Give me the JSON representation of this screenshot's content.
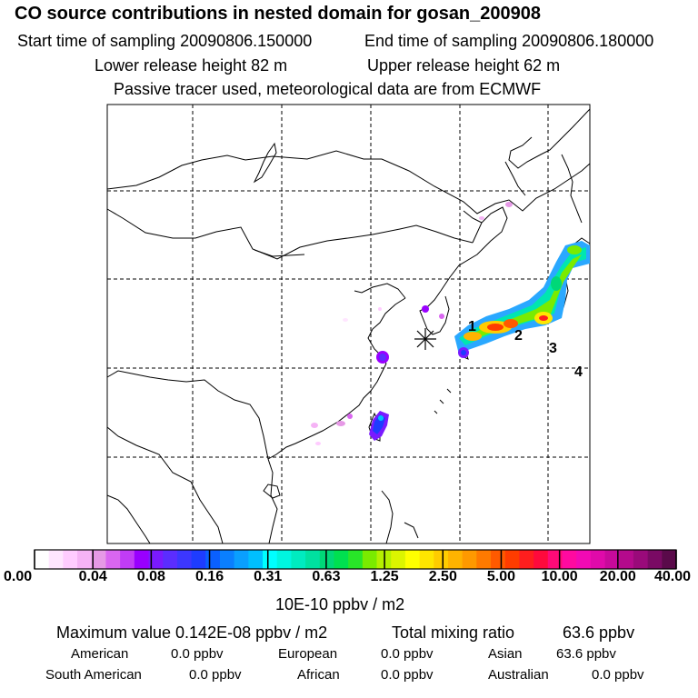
{
  "header": {
    "title": "CO  source contributions in nested domain for gosan_200908",
    "start_label": "Start time of sampling 20090806.150000",
    "end_label": "End time of sampling 20090806.180000",
    "lower_label": "Lower release height   82 m",
    "upper_label": "Upper release height   62 m",
    "note": "Passive tracer used, meteorological data are from ECMWF"
  },
  "map": {
    "receptor_marker": "asterisk",
    "markers": [
      "1",
      "2",
      "3",
      "4"
    ]
  },
  "colorbar": {
    "unit": "10E-10 ppbv / m2",
    "labels": [
      "0.00",
      "0.04",
      "0.08",
      "0.16",
      "0.31",
      "0.63",
      "1.25",
      "2.50",
      "5.00",
      "10.00",
      "20.00",
      "40.00"
    ],
    "colors": [
      "#ffffff",
      "#ffe6ff",
      "#ffccff",
      "#f5b3f5",
      "#e699e6",
      "#d966f0",
      "#c13cf5",
      "#9900ff",
      "#7a1aff",
      "#5b2dff",
      "#3c37ff",
      "#1e3cff",
      "#0a60ff",
      "#0a7fff",
      "#0a9fff",
      "#00bfff",
      "#00ffff",
      "#00f5e0",
      "#00ebc0",
      "#00e1a0",
      "#00d878",
      "#00e050",
      "#28e628",
      "#7aeb00",
      "#b4f000",
      "#dcf500",
      "#ffff00",
      "#ffe600",
      "#ffcc00",
      "#ffb300",
      "#ff9900",
      "#ff7a00",
      "#ff5a00",
      "#ff3c00",
      "#ff1e1e",
      "#ff0a3c",
      "#ff0a78",
      "#ff0aa0",
      "#f20ab4",
      "#e00aaa",
      "#c80a9b",
      "#b40a8c",
      "#9a0a7a",
      "#7a0a64",
      "#5a0a4a"
    ]
  },
  "summary": {
    "max_label": "Maximum value  0.142E-08 ppbv / m2",
    "total_label": "Total mixing ratio",
    "total_value": "63.6 ppbv",
    "american_label": "American",
    "american_value": "0.0 ppbv",
    "european_label": "European",
    "european_value": "0.0 ppbv",
    "asian_label": "Asian",
    "asian_value": "63.6 ppbv",
    "south_american_label": "South American",
    "south_american_value": "0.0 ppbv",
    "african_label": "African",
    "african_value": "0.0 ppbv",
    "australian_label": "Australian",
    "australian_value": "0.0 ppbv"
  }
}
